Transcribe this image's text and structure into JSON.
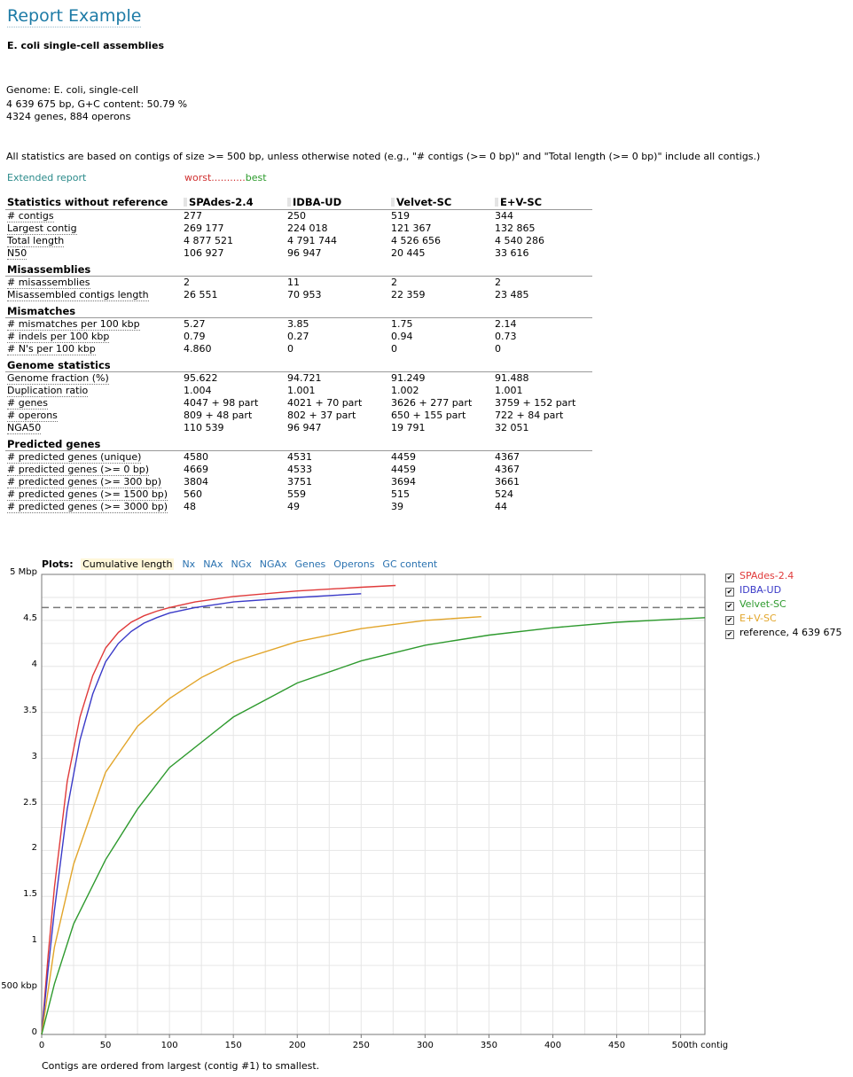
{
  "header": {
    "title": "Report Example",
    "subtitle": "E. coli single-cell assemblies"
  },
  "info": {
    "genome": "Genome: E. coli, single-cell",
    "size": "4 639 675 bp, G+C content: 50.79 %",
    "genes": "4324 genes, 884 operons",
    "note": "All statistics are based on contigs of size >= 500 bp, unless otherwise noted (e.g., \"# contigs (>= 0 bp)\" and \"Total length (>= 0 bp)\" include all contigs.)"
  },
  "links": {
    "extended": "Extended report",
    "worst": "worst...........",
    "best": "best"
  },
  "table": {
    "header": "Statistics without reference",
    "assemblies": [
      "SPAdes-2.4",
      "IDBA-UD",
      "Velvet-SC",
      "E+V-SC"
    ],
    "groups": [
      {
        "name": "",
        "rows": [
          {
            "label": "# contigs",
            "values": [
              "277",
              "250",
              "519",
              "344"
            ]
          },
          {
            "label": "Largest contig",
            "values": [
              "269 177",
              "224 018",
              "121 367",
              "132 865"
            ]
          },
          {
            "label": "Total length",
            "values": [
              "4 877 521",
              "4 791 744",
              "4 526 656",
              "4 540 286"
            ]
          },
          {
            "label": "N50",
            "values": [
              "106 927",
              "96 947",
              "20 445",
              "33 616"
            ]
          }
        ]
      },
      {
        "name": "Misassemblies",
        "rows": [
          {
            "label": "# misassemblies",
            "values": [
              "2",
              "11",
              "2",
              "2"
            ]
          },
          {
            "label": "Misassembled contigs length",
            "values": [
              "26 551",
              "70 953",
              "22 359",
              "23 485"
            ]
          }
        ]
      },
      {
        "name": "Mismatches",
        "rows": [
          {
            "label": "# mismatches per 100 kbp",
            "values": [
              "5.27",
              "3.85",
              "1.75",
              "2.14"
            ]
          },
          {
            "label": "# indels per 100 kbp",
            "values": [
              "0.79",
              "0.27",
              "0.94",
              "0.73"
            ]
          },
          {
            "label": "# N's per 100 kbp",
            "values": [
              "4.860",
              "0",
              "0",
              "0"
            ]
          }
        ]
      },
      {
        "name": "Genome statistics",
        "rows": [
          {
            "label": "Genome fraction (%)",
            "values": [
              "95.622",
              "94.721",
              "91.249",
              "91.488"
            ]
          },
          {
            "label": "Duplication ratio",
            "values": [
              "1.004",
              "1.001",
              "1.002",
              "1.001"
            ]
          },
          {
            "label": "# genes",
            "values": [
              "4047 + 98 part",
              "4021 + 70 part",
              "3626 + 277 part",
              "3759 + 152 part"
            ]
          },
          {
            "label": "# operons",
            "values": [
              "809 + 48 part",
              "802 + 37 part",
              "650 + 155 part",
              "722 + 84 part"
            ]
          },
          {
            "label": "NGA50",
            "values": [
              "110 539",
              "96 947",
              "19 791",
              "32 051"
            ]
          }
        ]
      },
      {
        "name": "Predicted genes",
        "rows": [
          {
            "label": "# predicted genes (unique)",
            "values": [
              "4580",
              "4531",
              "4459",
              "4367"
            ]
          },
          {
            "label": "# predicted genes (>= 0 bp)",
            "values": [
              "4669",
              "4533",
              "4459",
              "4367"
            ]
          },
          {
            "label": "# predicted genes (>= 300 bp)",
            "values": [
              "3804",
              "3751",
              "3694",
              "3661"
            ]
          },
          {
            "label": "# predicted genes (>= 1500 bp)",
            "values": [
              "560",
              "559",
              "515",
              "524"
            ]
          },
          {
            "label": "# predicted genes (>= 3000 bp)",
            "values": [
              "48",
              "49",
              "39",
              "44"
            ]
          }
        ]
      }
    ]
  },
  "plots": {
    "label": "Plots:",
    "tabs": [
      "Cumulative length",
      "Nx",
      "NAx",
      "NGx",
      "NGAx",
      "Genes",
      "Operons",
      "GC content"
    ],
    "selected": "Cumulative length",
    "footnote": "Contigs are ordered from largest (contig #1) to smallest."
  },
  "legend": [
    {
      "label": "SPAdes-2.4",
      "color": "#e03a3a",
      "checked": true
    },
    {
      "label": "IDBA-UD",
      "color": "#3a3ac8",
      "checked": true
    },
    {
      "label": "Velvet-SC",
      "color": "#2e9a2e",
      "checked": true
    },
    {
      "label": "E+V-SC",
      "color": "#e2a52a",
      "checked": true
    },
    {
      "label": "reference, 4 639 675",
      "color": "#000000",
      "checked": true
    }
  ],
  "chart_data": {
    "type": "line",
    "title": "Cumulative length",
    "xlabel": "",
    "ylabel": "",
    "x_ticks": [
      "0",
      "50",
      "100",
      "150",
      "200",
      "250",
      "300",
      "350",
      "400",
      "450",
      "500th contig"
    ],
    "y_ticks": [
      "0",
      "500 kbp",
      "1",
      "1.5",
      "2",
      "2.5",
      "3",
      "3.5",
      "4",
      "4.5",
      "5 Mbp"
    ],
    "xlim": [
      0,
      519
    ],
    "ylim": [
      0,
      5
    ],
    "y_unit": "Mbp",
    "grid": true,
    "reference": {
      "name": "reference, 4 639 675",
      "value": 4.64,
      "style": "dashed"
    },
    "series": [
      {
        "name": "SPAdes-2.4",
        "color": "#e03a3a",
        "x": [
          0,
          5,
          10,
          20,
          30,
          40,
          50,
          60,
          70,
          80,
          90,
          100,
          120,
          150,
          200,
          250,
          277
        ],
        "y": [
          0,
          0.85,
          1.6,
          2.75,
          3.45,
          3.9,
          4.2,
          4.37,
          4.48,
          4.55,
          4.6,
          4.64,
          4.7,
          4.76,
          4.82,
          4.86,
          4.88
        ]
      },
      {
        "name": "IDBA-UD",
        "color": "#3a3ac8",
        "x": [
          0,
          5,
          10,
          20,
          30,
          40,
          50,
          60,
          70,
          80,
          90,
          100,
          120,
          150,
          200,
          250
        ],
        "y": [
          0,
          0.7,
          1.35,
          2.45,
          3.2,
          3.7,
          4.05,
          4.25,
          4.38,
          4.47,
          4.53,
          4.58,
          4.64,
          4.7,
          4.75,
          4.79
        ]
      },
      {
        "name": "E+V-SC",
        "color": "#e2a52a",
        "x": [
          0,
          10,
          25,
          50,
          75,
          100,
          125,
          150,
          200,
          250,
          300,
          344
        ],
        "y": [
          0,
          0.95,
          1.85,
          2.85,
          3.35,
          3.65,
          3.88,
          4.05,
          4.27,
          4.41,
          4.5,
          4.54
        ]
      },
      {
        "name": "Velvet-SC",
        "color": "#2e9a2e",
        "x": [
          0,
          10,
          25,
          50,
          75,
          100,
          150,
          200,
          250,
          300,
          350,
          400,
          450,
          519
        ],
        "y": [
          0,
          0.55,
          1.2,
          1.9,
          2.45,
          2.9,
          3.45,
          3.82,
          4.06,
          4.23,
          4.34,
          4.42,
          4.48,
          4.53
        ]
      }
    ]
  }
}
